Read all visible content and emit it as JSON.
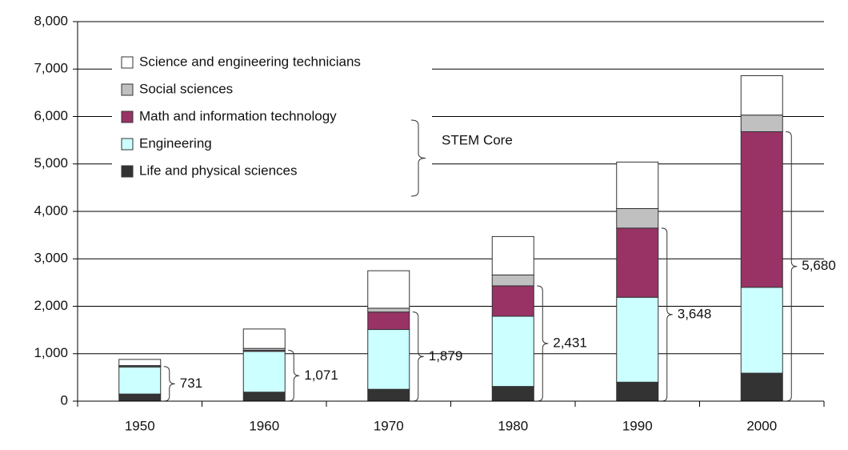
{
  "chart_data": {
    "type": "stacked_bar",
    "categories": [
      "1950",
      "1960",
      "1970",
      "1980",
      "1990",
      "2000"
    ],
    "series": [
      {
        "name": "Life and physical sciences",
        "color": "#333333",
        "values": [
          150,
          190,
          250,
          310,
          400,
          590
        ]
      },
      {
        "name": "Engineering",
        "color": "#ccffff",
        "values": [
          570,
          860,
          1260,
          1480,
          1790,
          1810
        ]
      },
      {
        "name": "Math and information technology",
        "color": "#993366",
        "values": [
          11,
          21,
          369,
          641,
          1458,
          3280
        ]
      },
      {
        "name": "Social sciences",
        "color": "#c0c0c0",
        "values": [
          20,
          40,
          80,
          229,
          412,
          350
        ]
      },
      {
        "name": "Science and engineering technicians",
        "color": "#ffffff",
        "values": [
          129,
          410,
          790,
          810,
          980,
          830
        ]
      }
    ],
    "core_totals": {
      "values": [
        731,
        1071,
        1879,
        2431,
        3648,
        5680
      ],
      "value_labels": [
        "731",
        "1,071",
        "1,879",
        "2,431",
        "3,648",
        "5,680"
      ]
    },
    "core_label": "STEM Core",
    "ylim": [
      0,
      8000
    ],
    "yticks": [
      {
        "value": 0,
        "label": "0"
      },
      {
        "value": 1000,
        "label": "1,000"
      },
      {
        "value": 2000,
        "label": "2,000"
      },
      {
        "value": 3000,
        "label": "3,000"
      },
      {
        "value": 4000,
        "label": "4,000"
      },
      {
        "value": 5000,
        "label": "5,000"
      },
      {
        "value": 6000,
        "label": "6,000"
      },
      {
        "value": 7000,
        "label": "7,000"
      },
      {
        "value": 8000,
        "label": "8,000"
      }
    ],
    "grid": true
  }
}
